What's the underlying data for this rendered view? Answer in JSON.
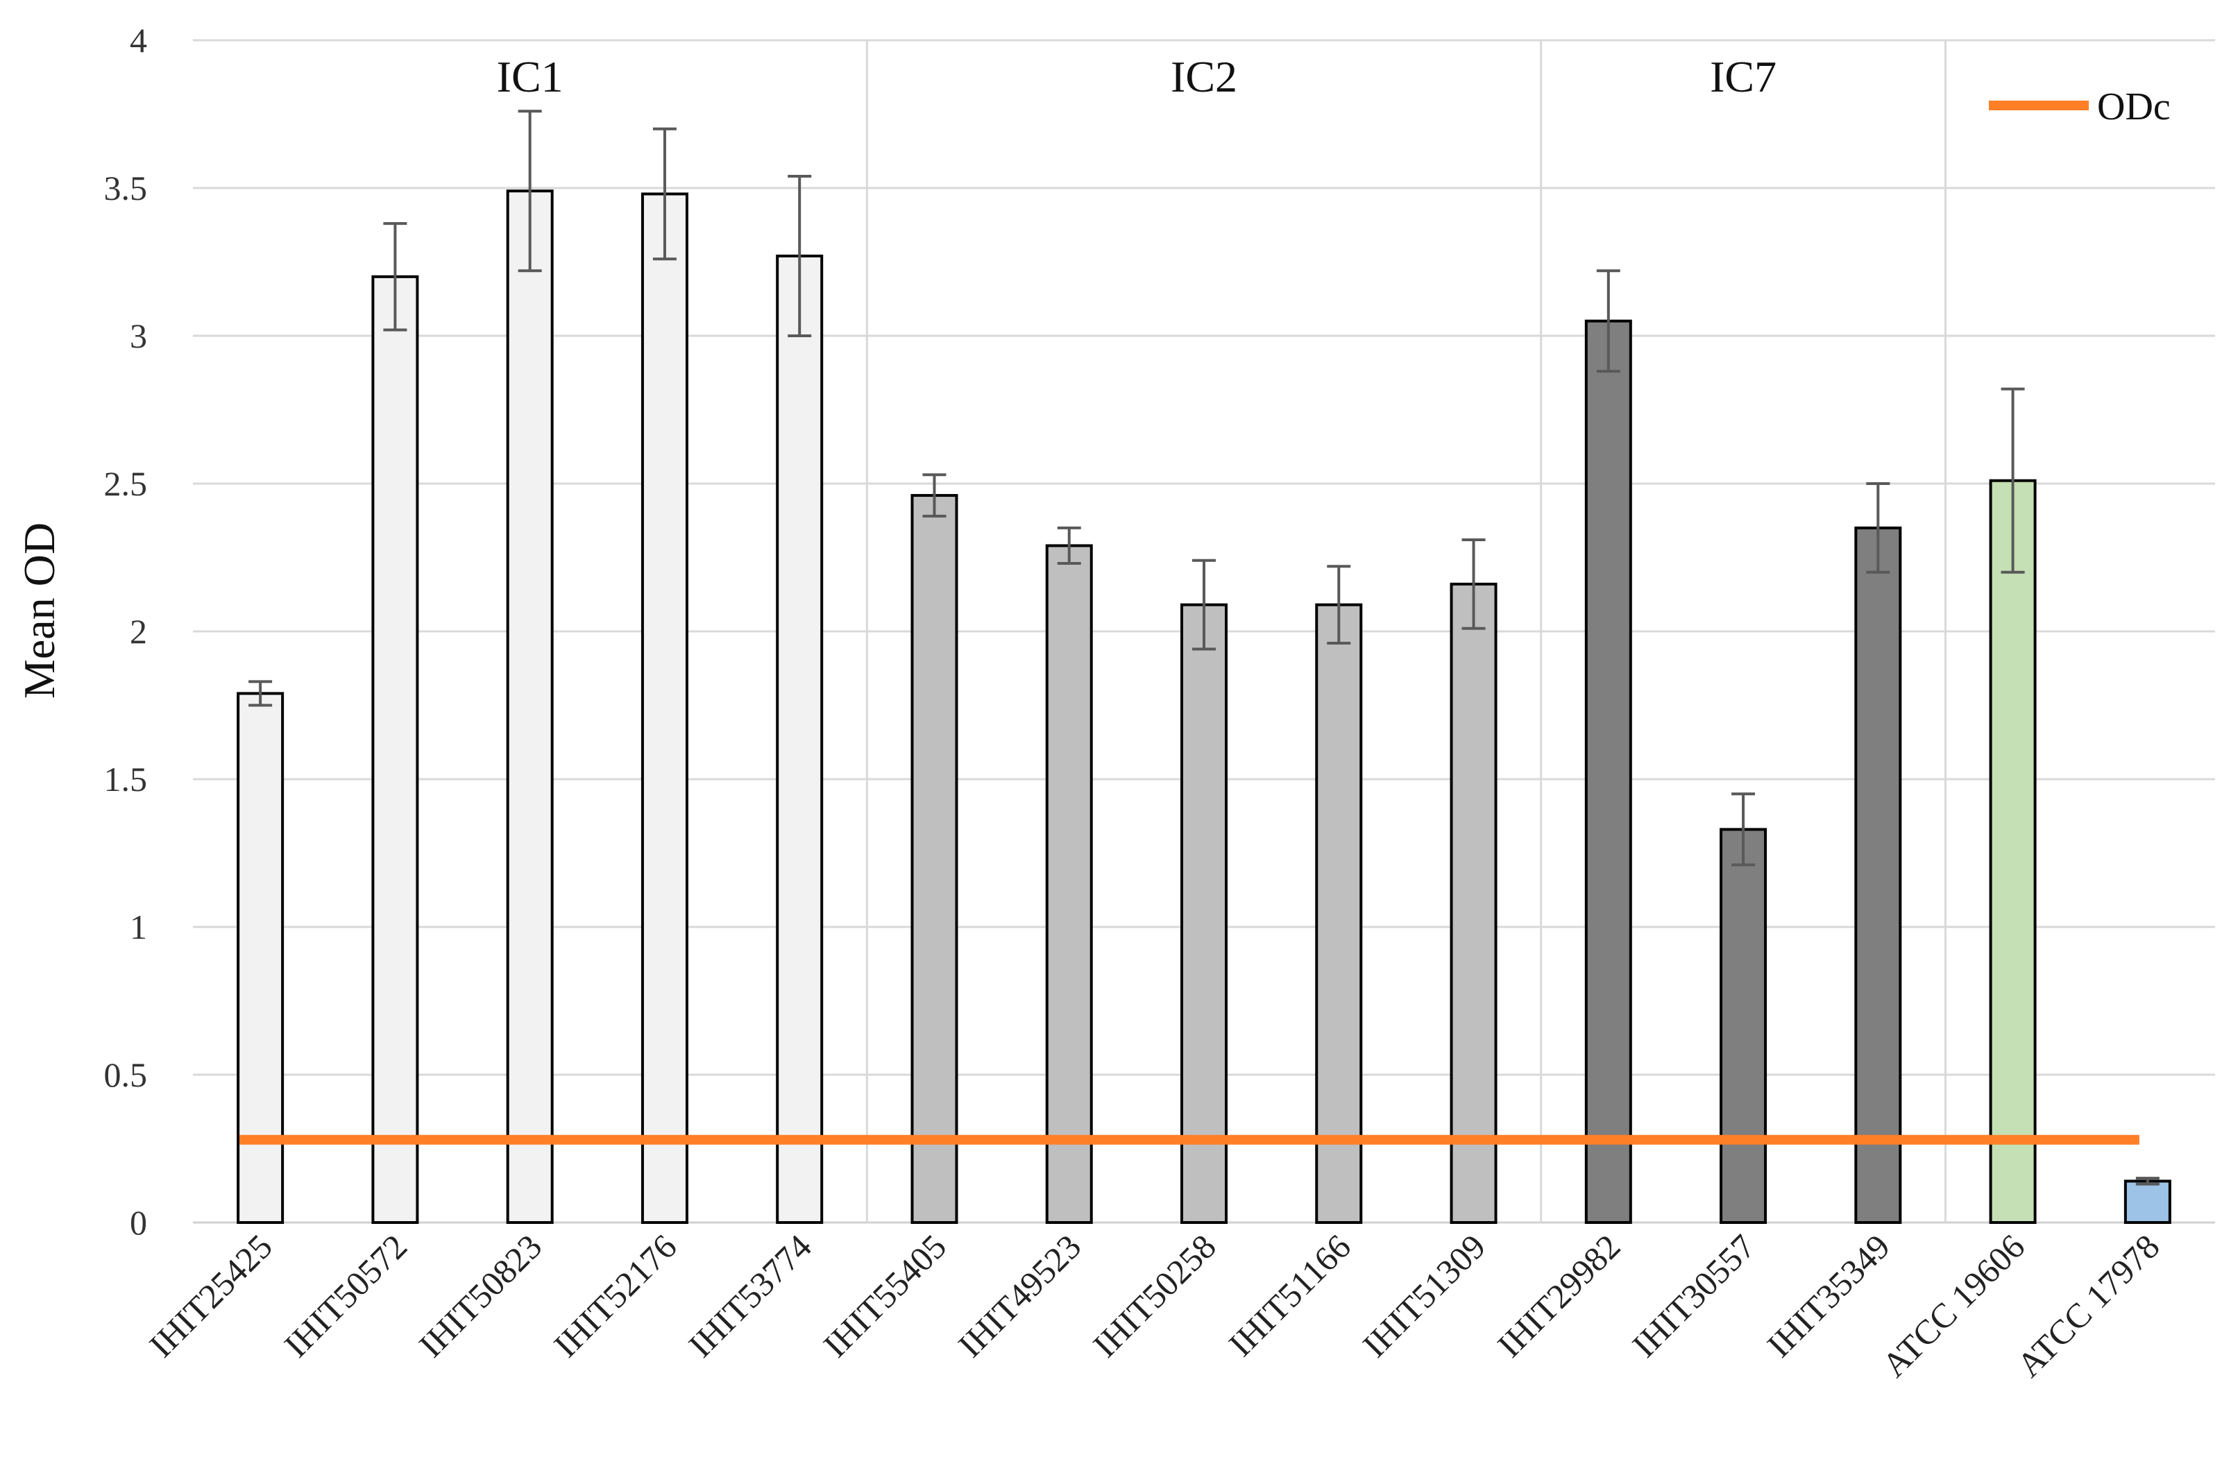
{
  "chart_data": {
    "type": "bar",
    "ylabel": "Mean OD",
    "xlabel": "",
    "ylim": [
      0,
      4
    ],
    "yticks": [
      0,
      0.5,
      1,
      1.5,
      2,
      2.5,
      3,
      3.5,
      4
    ],
    "ytick_labels": [
      "0",
      "0.5",
      "1",
      "1.5",
      "2",
      "2.5",
      "3",
      "3.5",
      "4"
    ],
    "grid": true,
    "categories": [
      "IHIT25425",
      "IHIT50572",
      "IHIT50823",
      "IHIT52176",
      "IHIT53774",
      "IHIT55405",
      "IHIT49523",
      "IHIT50258",
      "IHIT51166",
      "IHIT51309",
      "IHIT29982",
      "IHIT30557",
      "IHIT35349",
      "ATCC 19606",
      "ATCC 17978"
    ],
    "values": [
      1.79,
      3.2,
      3.49,
      3.48,
      3.27,
      2.46,
      2.29,
      2.09,
      2.09,
      2.16,
      3.05,
      1.33,
      2.35,
      2.51,
      0.14
    ],
    "errors": [
      0.04,
      0.18,
      0.27,
      0.22,
      0.27,
      0.07,
      0.06,
      0.15,
      0.13,
      0.15,
      0.17,
      0.12,
      0.15,
      0.31,
      0.01
    ],
    "bar_colors": [
      "#f2f2f2",
      "#f2f2f2",
      "#f2f2f2",
      "#f2f2f2",
      "#f2f2f2",
      "#bfbfbf",
      "#bfbfbf",
      "#bfbfbf",
      "#bfbfbf",
      "#bfbfbf",
      "#7f7f7f",
      "#7f7f7f",
      "#7f7f7f",
      "#c5e0b4",
      "#9dc3e6"
    ],
    "groups": [
      {
        "label": "IC1",
        "start": 0,
        "end": 4
      },
      {
        "label": "IC2",
        "start": 5,
        "end": 9
      },
      {
        "label": "IC7",
        "start": 10,
        "end": 12
      },
      {
        "label": "",
        "start": 13,
        "end": 14
      }
    ],
    "reference_line": {
      "name": "ODc",
      "value": 0.28,
      "color": "#ff7f27"
    },
    "legend": {
      "position": "top-right",
      "entries": [
        "ODc"
      ]
    }
  }
}
